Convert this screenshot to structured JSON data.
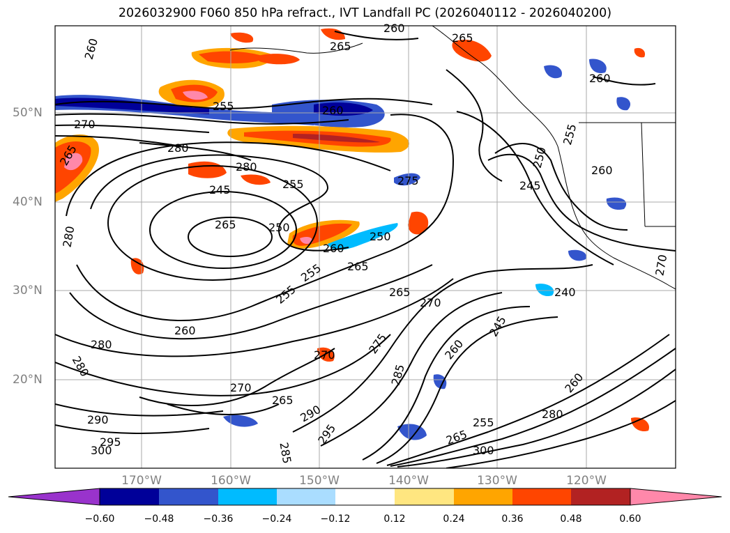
{
  "title": "2026032900 F060 850 hPa refract., IVT Landfall PC (2026040112 - 2026040200)",
  "map": {
    "lat_ticks": [
      "50°N",
      "40°N",
      "30°N",
      "20°N"
    ],
    "lon_ticks": [
      "170°W",
      "160°W",
      "150°W",
      "140°W",
      "130°W",
      "120°W"
    ],
    "contour_labels": [
      "260",
      "265",
      "260",
      "265",
      "260",
      "255",
      "260",
      "270",
      "265",
      "280",
      "280",
      "255",
      "245",
      "275",
      "265",
      "250",
      "250",
      "260",
      "280",
      "245",
      "250",
      "265",
      "255",
      "240",
      "265",
      "270",
      "260",
      "245",
      "255",
      "260",
      "255",
      "280",
      "270",
      "275",
      "260",
      "285",
      "280",
      "270",
      "265",
      "290",
      "295",
      "255",
      "265",
      "290",
      "295",
      "300",
      "300",
      "285",
      "270",
      "280",
      "260"
    ],
    "colors": {
      "neg_060": "#9933cc",
      "neg_048": "#000099",
      "neg_036": "#3355cc",
      "neg_024": "#00bbff",
      "neg_012": "#aaddff",
      "neutral": "#ffffff",
      "pos_012": "#ffe680",
      "pos_024": "#ffa500",
      "pos_036": "#ff4500",
      "pos_048": "#b22222",
      "pos_060": "#ff88aa"
    }
  },
  "colorbar": {
    "ticks": [
      "−0.60",
      "−0.48",
      "−0.36",
      "−0.24",
      "−0.12",
      "0.12",
      "0.24",
      "0.36",
      "0.48",
      "0.60"
    ],
    "colors": [
      "#9933cc",
      "#000099",
      "#3355cc",
      "#00bbff",
      "#aaddff",
      "#ffffff",
      "#ffe680",
      "#ffa500",
      "#ff4500",
      "#b22222",
      "#ff88aa"
    ]
  }
}
